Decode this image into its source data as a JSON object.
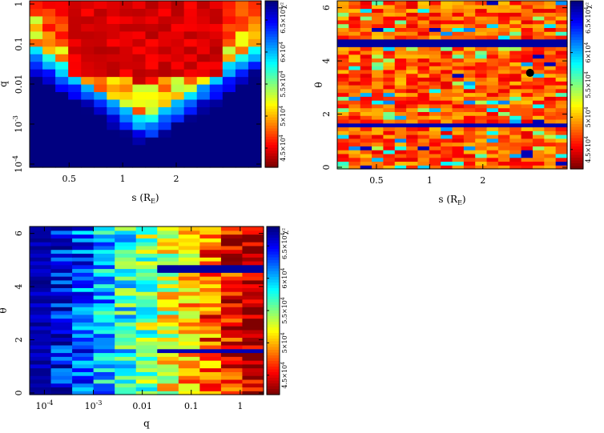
{
  "chart_data": [
    {
      "type": "heatmap",
      "xlabel": "s (R_E)",
      "ylabel": "q",
      "x_axis": {
        "scale": "log",
        "range": [
          0.3,
          6.0
        ],
        "ticks": [
          "0.5",
          "1",
          "2"
        ],
        "tick_values": [
          0.5,
          1,
          2
        ]
      },
      "y_axis": {
        "scale": "log",
        "range": [
          0.0001,
          1.0
        ],
        "ticks": [
          "10^-4",
          "10^-3",
          "0.01",
          "0.1",
          "1"
        ],
        "tick_values": [
          0.0001,
          0.001,
          0.01,
          0.1,
          1
        ]
      },
      "colorbar": {
        "label": "χ²",
        "ticks": [
          "4.5×10^4",
          "5×10^4",
          "5.5×10^4",
          "6×10^4",
          "6.5×10^4"
        ],
        "tick_values": [
          45000,
          50000,
          55000,
          60000,
          65000
        ]
      },
      "structure": "blue/green at low q rising to red/orange at q > 0.01; V-shaped minimum centered near s = 1"
    },
    {
      "type": "heatmap",
      "xlabel": "s (R_E)",
      "ylabel": "θ",
      "x_axis": {
        "scale": "log",
        "range": [
          0.3,
          6.0
        ],
        "ticks": [
          "0.5",
          "1",
          "2"
        ],
        "tick_values": [
          0.5,
          1,
          2
        ]
      },
      "y_axis": {
        "scale": "linear",
        "range": [
          0,
          6.2
        ],
        "ticks": [
          "0",
          "2",
          "4",
          "6"
        ],
        "tick_values": [
          0,
          2,
          4,
          6
        ]
      },
      "colorbar": {
        "label": "χ²",
        "ticks": [
          "4.5×10^4",
          "5×10^4",
          "5.5×10^4",
          "6×10^4",
          "6.5×10^4"
        ],
        "tick_values": [
          45000,
          50000,
          55000,
          60000,
          65000
        ]
      },
      "marker": {
        "s": 3.7,
        "theta": 3.55
      },
      "structure": "mostly red; horizontal blue bands near θ = 4.7 and θ = 1.57"
    },
    {
      "type": "heatmap",
      "xlabel": "q",
      "ylabel": "θ",
      "x_axis": {
        "scale": "log",
        "range": [
          5e-05,
          3.0
        ],
        "ticks": [
          "10^-4",
          "10^-3",
          "0.01",
          "0.1",
          "1"
        ],
        "tick_values": [
          0.0001,
          0.001,
          0.01,
          0.1,
          1
        ]
      },
      "y_axis": {
        "scale": "linear",
        "range": [
          0,
          6.2
        ],
        "ticks": [
          "0",
          "2",
          "4",
          "6"
        ],
        "tick_values": [
          0,
          2,
          4,
          6
        ]
      },
      "colorbar": {
        "label": "χ²",
        "ticks": [
          "4.5×10^4",
          "5×10^4",
          "5.5×10^4",
          "6×10^4",
          "6.5×10^4"
        ],
        "tick_values": [
          45000,
          50000,
          55000,
          60000,
          65000
        ]
      },
      "structure": "blue at low q transitioning through cyan/yellow to red at high q; blue bands near θ = 4.7 and θ = 1.57"
    }
  ]
}
